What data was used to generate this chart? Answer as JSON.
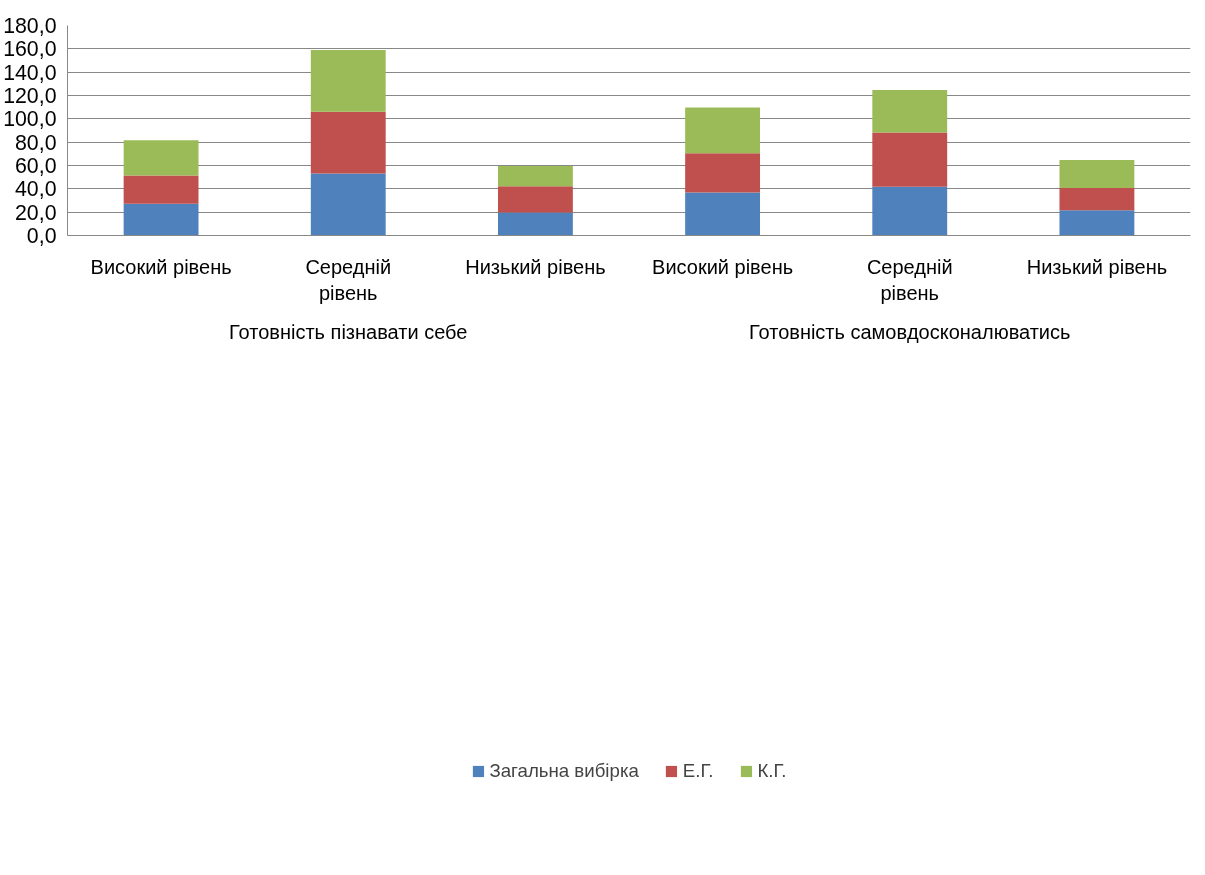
{
  "chart_data": {
    "type": "bar",
    "stacked": true,
    "categories": [
      "Високий рівень",
      "Середній рівень",
      "Низький рівень",
      "Високий рівень",
      "Середній рівень",
      "Низький рівень"
    ],
    "annotations": [
      "Готовність пізнавати себе",
      "Готовність самовдосконалюватись"
    ],
    "series": [
      {
        "name": "Загальна вибірка",
        "color": "#4f81bd",
        "values": [
          27.3,
          53.2,
          19.8,
          36.8,
          41.7,
          21.6
        ]
      },
      {
        "name": "Е.Г.",
        "color": "#c0504d",
        "values": [
          24.2,
          52.9,
          22.5,
          33.6,
          46.6,
          19.2
        ]
      },
      {
        "name": "К.Г.",
        "color": "#9bbb59",
        "values": [
          30.2,
          52.9,
          17.2,
          39.4,
          36.5,
          23.9
        ]
      }
    ],
    "ylim": [
      0,
      180
    ],
    "yticks": [
      {
        "value": 0,
        "label": "0,0"
      },
      {
        "value": 20,
        "label": "20,0"
      },
      {
        "value": 40,
        "label": "40,0"
      },
      {
        "value": 60,
        "label": "60,0"
      },
      {
        "value": 80,
        "label": "80,0"
      },
      {
        "value": 100,
        "label": "100,0"
      },
      {
        "value": 120,
        "label": "120,0"
      },
      {
        "value": 140,
        "label": "140,0"
      },
      {
        "value": 160,
        "label": "160,0"
      },
      {
        "value": 180,
        "label": "180,0"
      }
    ],
    "grid": "y",
    "legend": "bottom"
  }
}
